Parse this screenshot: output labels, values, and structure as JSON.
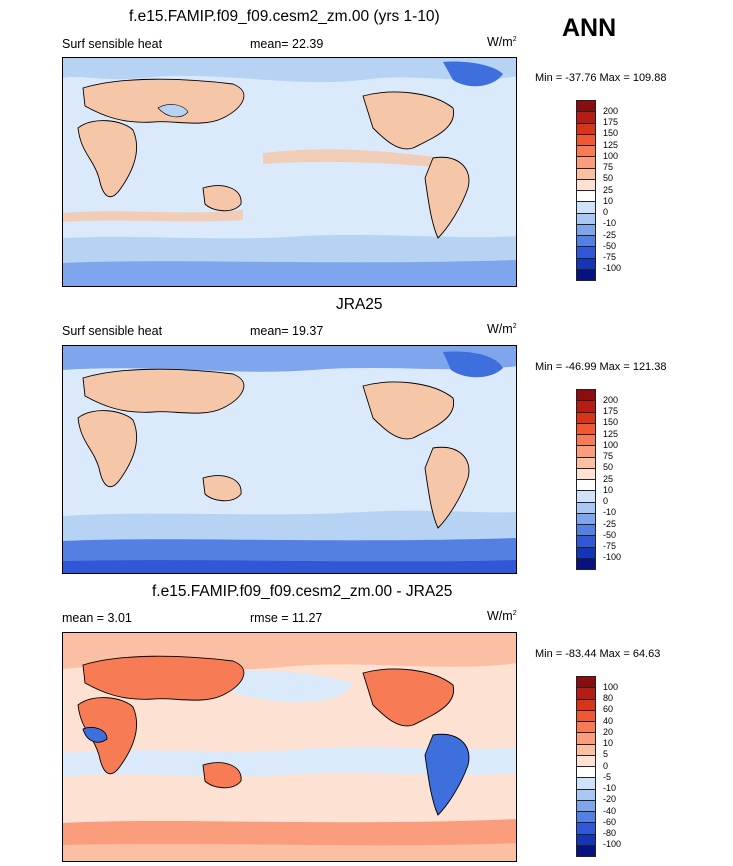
{
  "season": "ANN",
  "colors": {
    "ocean_light": "#dbeafb",
    "ocean_mid": "#b7d3f4",
    "land_warm": "#f6c6a8",
    "deep_blue": "#3f6fdc",
    "strong_red": "#e75b3b",
    "coast": "#000000"
  },
  "panels": [
    {
      "title": "f.e15.FAMIP.f09_f09.cesm2_zm.00 (yrs 1-10)",
      "left_label": "Surf sensible heat",
      "mid_label": "mean=  22.39",
      "units_base": "W/m",
      "units_sup": "2",
      "minmax": "Min = -37.76 Max = 109.88",
      "legend_labels": [
        "200",
        "175",
        "150",
        "125",
        "100",
        "75",
        "50",
        "25",
        "10",
        "0",
        "-10",
        "-25",
        "-50",
        "-75",
        "-100"
      ],
      "legend_colors": [
        "#8b0d0d",
        "#b51c13",
        "#d8341a",
        "#ef5830",
        "#f77c55",
        "#f99d7d",
        "#fbbfa4",
        "#fde1d2",
        "#ffffff",
        "#cfe2fa",
        "#a9c8f4",
        "#7fa6ec",
        "#5580e3",
        "#2f57d6",
        "#1535b8",
        "#07117f"
      ]
    },
    {
      "title": "JRA25",
      "left_label": "Surf sensible heat",
      "mid_label": "mean=  19.37",
      "units_base": "W/m",
      "units_sup": "2",
      "minmax": "Min = -46.99 Max = 121.38",
      "legend_labels": [
        "200",
        "175",
        "150",
        "125",
        "100",
        "75",
        "50",
        "25",
        "10",
        "0",
        "-10",
        "-25",
        "-50",
        "-75",
        "-100"
      ],
      "legend_colors": [
        "#8b0d0d",
        "#b51c13",
        "#d8341a",
        "#ef5830",
        "#f77c55",
        "#f99d7d",
        "#fbbfa4",
        "#fde1d2",
        "#ffffff",
        "#cfe2fa",
        "#a9c8f4",
        "#7fa6ec",
        "#5580e3",
        "#2f57d6",
        "#1535b8",
        "#07117f"
      ]
    },
    {
      "title": "f.e15.FAMIP.f09_f09.cesm2_zm.00 - JRA25",
      "left_label": "mean =   3.01",
      "mid_label": "rmse =  11.27",
      "units_base": "W/m",
      "units_sup": "2",
      "minmax": "Min = -83.44 Max =  64.63",
      "legend_labels": [
        "100",
        "80",
        "60",
        "40",
        "20",
        "10",
        "5",
        "0",
        "-5",
        "-10",
        "-20",
        "-40",
        "-60",
        "-80",
        "-100"
      ],
      "legend_colors": [
        "#8b0d0d",
        "#b51c13",
        "#d8341a",
        "#ef5830",
        "#f77c55",
        "#f99d7d",
        "#fbbfa4",
        "#fde1d2",
        "#ffffff",
        "#cfe2fa",
        "#a9c8f4",
        "#7fa6ec",
        "#5580e3",
        "#2f57d6",
        "#1535b8",
        "#07117f"
      ]
    }
  ]
}
